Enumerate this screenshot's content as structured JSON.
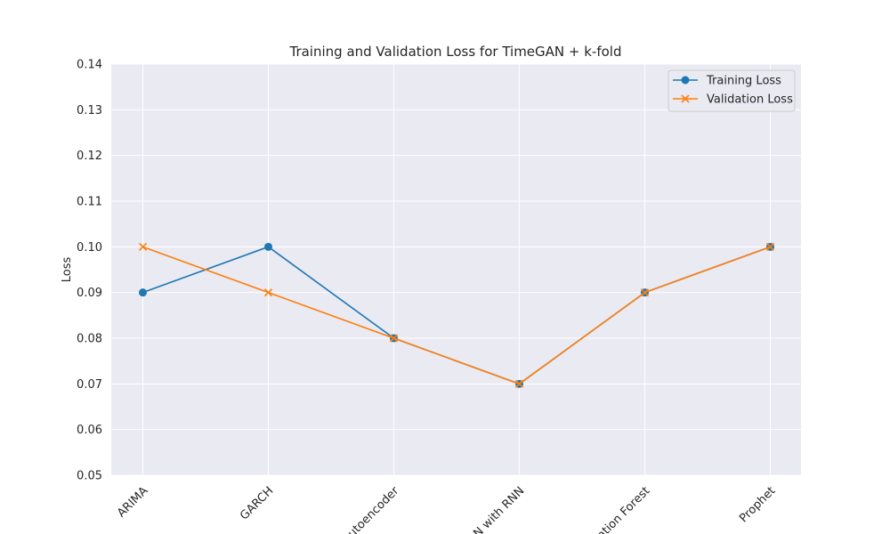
{
  "chart_data": {
    "type": "line",
    "title": "Training and Validation Loss for TimeGAN + k-fold",
    "xlabel": "",
    "ylabel": "Loss",
    "categories": [
      "ARIMA",
      "GARCH",
      "Autoencoder",
      "GAN with RNN",
      "Isolation Forest",
      "Prophet"
    ],
    "ylim": [
      0.05,
      0.14
    ],
    "yticks": [
      "0.05",
      "0.06",
      "0.07",
      "0.08",
      "0.09",
      "0.10",
      "0.11",
      "0.12",
      "0.13",
      "0.14"
    ],
    "grid": true,
    "legend_position": "top-right",
    "series": [
      {
        "name": "Training Loss",
        "values": [
          0.09,
          0.1,
          0.08,
          0.07,
          0.09,
          0.1
        ],
        "marker": "circle",
        "color": "#1f77b4"
      },
      {
        "name": "Validation Loss",
        "values": [
          0.1,
          0.09,
          0.08,
          0.07,
          0.09,
          0.1
        ],
        "marker": "x",
        "color": "#ff7f0e"
      }
    ],
    "background_color": "#eaeaf2"
  }
}
